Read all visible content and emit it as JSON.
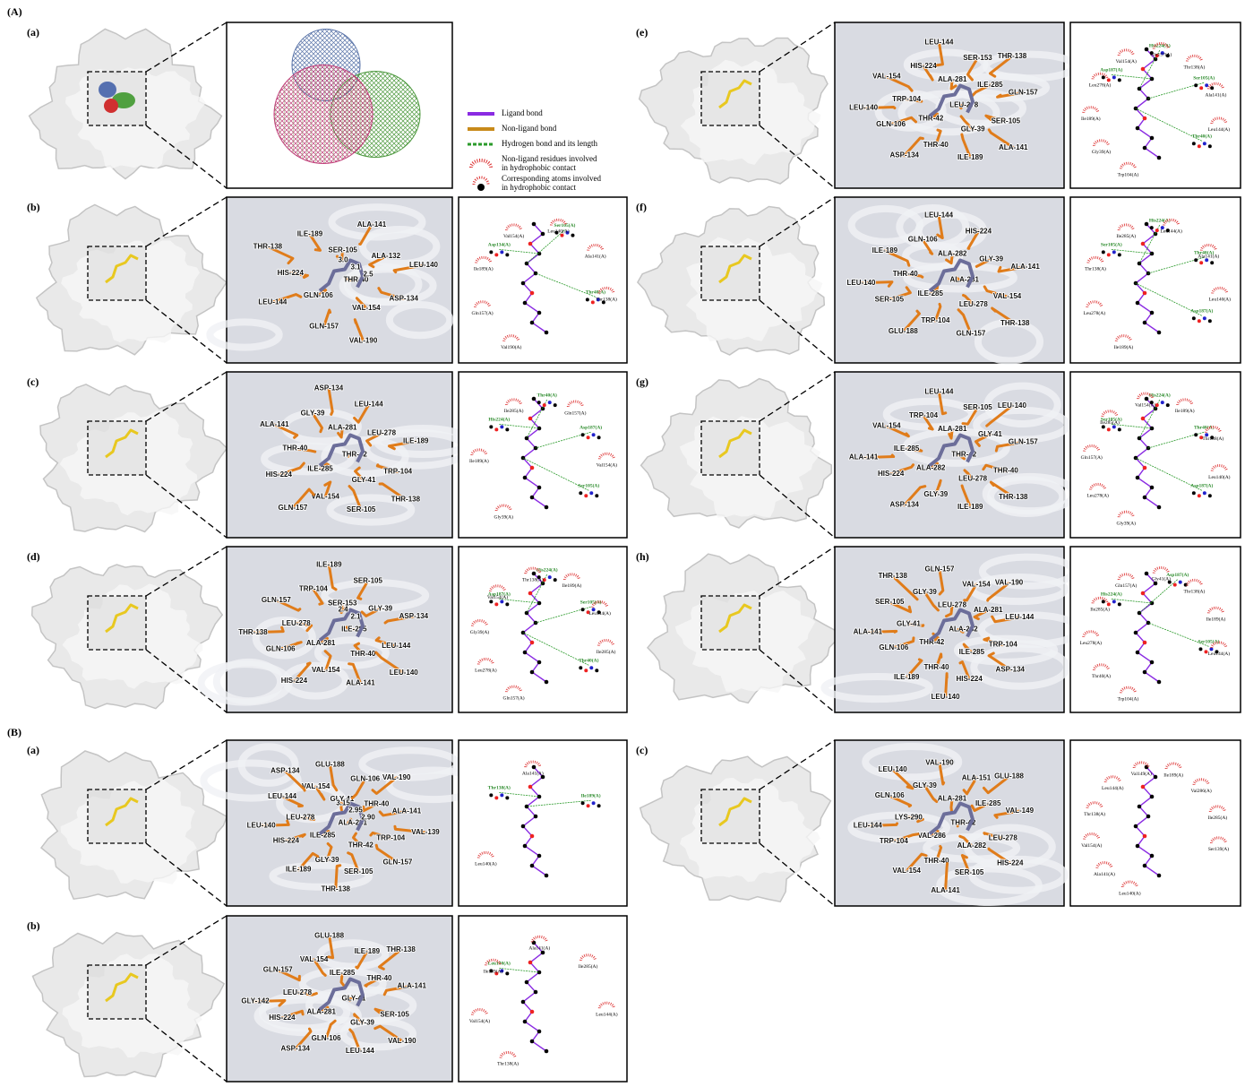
{
  "section_labels": [
    "(A)",
    "(B)"
  ],
  "legend": [
    [
      "Ligand bond"
    ],
    [
      "Non-ligand bond"
    ],
    [
      "Hydrogen bond and its length"
    ],
    [
      "Non-ligand residues involved",
      "in hydrophobic contact"
    ],
    [
      "Corresponding atoms involved",
      "in hydrophobic contact"
    ]
  ],
  "panels": [
    {
      "label": "(a)"
    },
    {
      "label": "(b)",
      "residues": [
        "THR-40",
        "GLN-106",
        "SER-105",
        "VAL-154",
        "HIS-224",
        "ALA-132",
        "GLN-157",
        "ILE-189",
        "ASP-134",
        "LEU-144",
        "ALA-141",
        "VAL-190",
        "THR-138",
        "LEU-140"
      ],
      "distances": [
        "3.0",
        "3.1",
        "2.5"
      ],
      "hbond_residues": [
        "Asp134(A)",
        "Ser105(A)",
        "Thr40(A)"
      ],
      "contact_residues": [
        "Val190(A)",
        "Gln157(A)",
        "Ile189(A)",
        "Val154(A)",
        "Leu140(A)",
        "Ala141(A)",
        "Thr138(A)"
      ]
    },
    {
      "label": "(c)",
      "residues": [
        "THR-42",
        "ILE-285",
        "ALA-281",
        "GLY-41",
        "THR-40",
        "LEU-278",
        "VAL-154",
        "GLY-39",
        "TRP-104",
        "HIS-224",
        "LEU-144",
        "SER-105",
        "ALA-141",
        "ILE-189",
        "GLN-157",
        "ASP-134",
        "THR-138"
      ],
      "hbond_residues": [
        "His224(A)",
        "Thr40(A)",
        "Asp187(A)",
        "Ser105(A)"
      ],
      "contact_residues": [
        "Gly39(A)",
        "Ile189(A)",
        "Ile285(A)",
        "Gln157(A)",
        "Val154(A)"
      ]
    },
    {
      "label": "(d)",
      "residues": [
        "ILE-285",
        "ALA-281",
        "SER-153",
        "THR-40",
        "LEU-278",
        "GLY-39",
        "VAL-154",
        "TRP-104",
        "LEU-144",
        "GLN-106",
        "SER-105",
        "ALA-141",
        "GLN-157",
        "ASP-134",
        "HIS-224",
        "ILE-189",
        "LEU-140",
        "THR-138"
      ],
      "distances": [
        "2.4",
        "2.1"
      ],
      "hbond_residues": [
        "Asp187(A)",
        "His224(A)",
        "Ser105(A)",
        "Thr40(A)"
      ],
      "contact_residues": [
        "Gln157(A)",
        "Leu278(A)",
        "Gly39(A)",
        "Val154(A)",
        "Thr138(A)",
        "Ile189(A)",
        "Leu144(A)",
        "Ile285(A)"
      ]
    },
    {
      "label": "(e)",
      "residues": [
        "LEU-278",
        "THR-42",
        "ALA-281",
        "GLY-39",
        "TRP-104",
        "ILE-285",
        "THR-40",
        "HIS-224",
        "SER-105",
        "GLN-106",
        "SER-153",
        "ILE-189",
        "VAL-154",
        "GLN-157",
        "ASP-134",
        "LEU-144",
        "ALA-141",
        "LEU-140",
        "THR-138"
      ],
      "hbond_residues": [
        "Asp187(A)",
        "His224(A)",
        "Ser105(A)",
        "Thr40(A)"
      ],
      "contact_residues": [
        "Trp104(A)",
        "Gly39(A)",
        "Ile189(A)",
        "Leu278(A)",
        "Val154(A)",
        "Gln157(A)",
        "Thr138(A)",
        "Ala141(A)",
        "Leu144(A)"
      ]
    },
    {
      "label": "(f)",
      "residues": [
        "ALA-281",
        "ILE-285",
        "ALA-282",
        "LEU-278",
        "THR-40",
        "GLY-39",
        "TRP-104",
        "GLN-106",
        "VAL-154",
        "SER-105",
        "HIS-224",
        "GLN-157",
        "ILE-189",
        "ALA-141",
        "GLU-188",
        "LEU-144",
        "THR-138",
        "LEU-140"
      ],
      "hbond_residues": [
        "Ser105(A)",
        "His224(A)",
        "Thr40(A)",
        "Asp187(A)"
      ],
      "contact_residues": [
        "Ile189(A)",
        "Leu278(A)",
        "Thr138(A)",
        "Ile285(A)",
        "Leu144(A)",
        "Ala141(A)",
        "Leu140(A)"
      ]
    },
    {
      "label": "(g)",
      "residues": [
        "THR-42",
        "ALA-282",
        "ALA-281",
        "LEU-278",
        "ILE-285",
        "GLY-41",
        "GLY-39",
        "TRP-104",
        "THR-40",
        "HIS-224",
        "SER-105",
        "ILE-189",
        "VAL-154",
        "GLN-157",
        "ASP-134",
        "LEU-144",
        "THR-138",
        "ALA-141",
        "LEU-140"
      ],
      "hbond_residues": [
        "Ser105(A)",
        "His224(A)",
        "Thr40(A)",
        "Asp187(A)"
      ],
      "contact_residues": [
        "Gly39(A)",
        "Leu278(A)",
        "Gln157(A)",
        "Ile285(A)",
        "Val154(A)",
        "Ile189(A)",
        "Thr138(A)",
        "Leu140(A)"
      ]
    },
    {
      "label": "(h)",
      "residues": [
        "ALA-282",
        "THR-42",
        "LEU-278",
        "ILE-285",
        "GLY-41",
        "ALA-281",
        "THR-40",
        "GLY-39",
        "TRP-104",
        "GLN-106",
        "VAL-154",
        "HIS-224",
        "SER-105",
        "LEU-144",
        "ILE-189",
        "GLN-157",
        "ASP-134",
        "ALA-141",
        "VAL-190",
        "LEU-140",
        "THR-138"
      ],
      "hbond_residues": [
        "His224(A)",
        "Asp187(A)",
        "Ser105(A)"
      ],
      "contact_residues": [
        "Trp104(A)",
        "Thr40(A)",
        "Leu278(A)",
        "Ile285(A)",
        "Gln157(A)",
        "Gly41(A)",
        "Thr138(A)",
        "Ile189(A)",
        "Leu144(A)"
      ]
    },
    {
      "label": "(a)",
      "residues": [
        "ALA-281",
        "ILE-285",
        "GLY-41",
        "THR-42",
        "LEU-278",
        "THR-40",
        "GLY-39",
        "VAL-154",
        "TRP-104",
        "HIS-224",
        "GLN-106",
        "SER-105",
        "LEU-144",
        "ALA-141",
        "ILE-189",
        "GLU-188",
        "GLN-157",
        "LEU-140",
        "VAL-190",
        "THR-138",
        "ASP-134",
        "VAL-139"
      ],
      "distances": [
        "3.15",
        "2.95",
        "2.90"
      ],
      "hbond_residues": [
        "Thr138(A)",
        "Ile189(A)"
      ],
      "contact_residues": [
        "Leu140(A)",
        "Ala141(A)"
      ]
    },
    {
      "label": "(b)",
      "residues": [
        "GLY-41",
        "ALA-281",
        "ILE-285",
        "GLY-39",
        "LEU-278",
        "THR-40",
        "GLN-106",
        "VAL-154",
        "SER-105",
        "HIS-224",
        "ILE-189",
        "LEU-144",
        "GLN-157",
        "ALA-141",
        "ASP-134",
        "GLU-188",
        "VAL-190",
        "GLY-142",
        "THR-138"
      ],
      "hbond_residues": [
        "Leu140(A)"
      ],
      "contact_residues": [
        "Thr138(A)",
        "Val154(A)",
        "Ile189(A)",
        "Ala141(A)",
        "Ile285(A)",
        "Leu144(A)"
      ]
    },
    {
      "label": "(c)",
      "residues": [
        "THR-42",
        "VAL-286",
        "ALA-281",
        "ALA-282",
        "LYS-290",
        "ILE-285",
        "THR-40",
        "GLY-39",
        "LEU-278",
        "TRP-104",
        "ALA-151",
        "SER-105",
        "GLN-106",
        "VAL-149",
        "VAL-154",
        "VAL-190",
        "HIS-224",
        "LEU-144",
        "GLU-188",
        "ALA-141",
        "LEU-140"
      ],
      "contact_residues": [
        "Leu140(A)",
        "Ala141(A)",
        "Val154(A)",
        "Thr138(A)",
        "Leu144(A)",
        "Val149(A)",
        "Ile189(A)",
        "Val286(A)",
        "Ile285(A)",
        "Ser139(A)"
      ]
    }
  ]
}
